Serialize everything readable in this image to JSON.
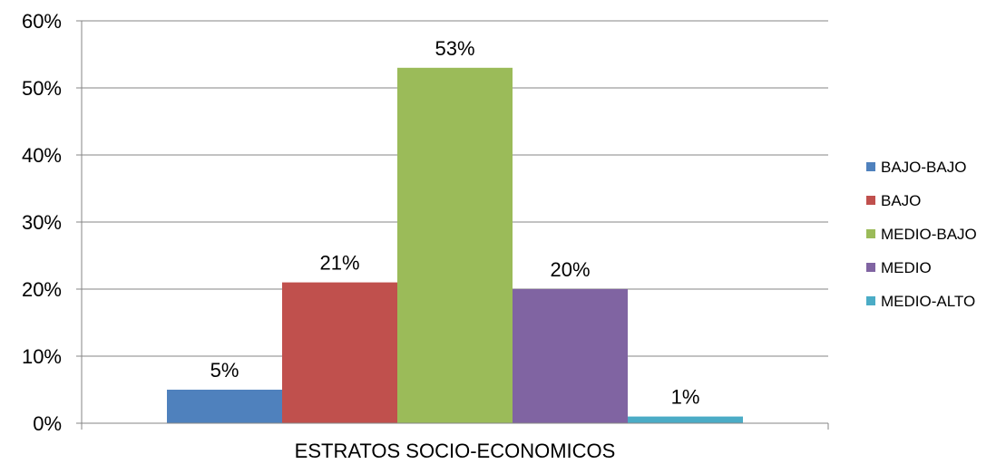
{
  "chart_data": {
    "type": "bar",
    "categories": [
      "ESTRATOS SOCIO-ECONOMICOS"
    ],
    "series": [
      {
        "name": "BAJO-BAJO",
        "values": [
          5
        ],
        "label": "5%",
        "color": "#4F81BD"
      },
      {
        "name": "BAJO",
        "values": [
          21
        ],
        "label": "21%",
        "color": "#C0504D"
      },
      {
        "name": "MEDIO-BAJO",
        "values": [
          53
        ],
        "label": "53%",
        "color": "#9BBB59"
      },
      {
        "name": "MEDIO",
        "values": [
          20
        ],
        "label": "20%",
        "color": "#8064A2"
      },
      {
        "name": "MEDIO-ALTO",
        "values": [
          1
        ],
        "label": "1%",
        "color": "#4BACC6"
      }
    ],
    "title": "",
    "xlabel": "",
    "ylabel": "",
    "ylim": [
      0,
      60
    ],
    "yticks": [
      {
        "value": 0,
        "label": "0%"
      },
      {
        "value": 10,
        "label": "10%"
      },
      {
        "value": 20,
        "label": "20%"
      },
      {
        "value": 30,
        "label": "30%"
      },
      {
        "value": 40,
        "label": "40%"
      },
      {
        "value": 50,
        "label": "50%"
      },
      {
        "value": 60,
        "label": "60%"
      }
    ],
    "grid": true,
    "legend_position": "right"
  }
}
